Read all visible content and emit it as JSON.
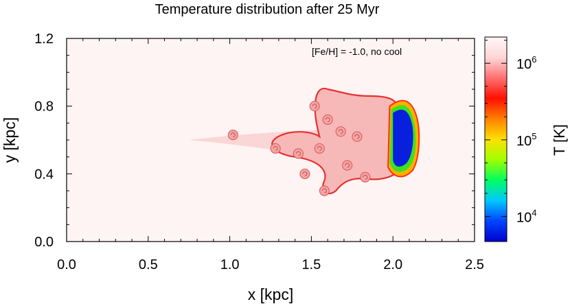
{
  "chart_data": {
    "type": "heatmap",
    "title": "Temperature distribution after 25 Myr",
    "annotation": "[Fe/H] = -1.0, no cool",
    "xlabel": "x [kpc]",
    "ylabel": "y [kpc]",
    "xlim": [
      0.0,
      2.5
    ],
    "ylim": [
      0.0,
      1.2
    ],
    "xticks": [
      0.0,
      0.5,
      1.0,
      1.5,
      2.0,
      2.5
    ],
    "xtick_labels": [
      "0.0",
      "0.5",
      "1.0",
      "1.5",
      "2.0",
      "2.5"
    ],
    "yticks": [
      0.0,
      0.4,
      0.8,
      1.2
    ],
    "ytick_labels": [
      "0.0",
      "0.4",
      "0.8",
      "1.2"
    ],
    "grid": false,
    "colorbar": {
      "label": "T [K]",
      "scale": "log",
      "range": [
        4700,
        2200000
      ],
      "ticks": [
        {
          "value": 10000,
          "base": "10",
          "exp": "4"
        },
        {
          "value": 100000,
          "base": "10",
          "exp": "5"
        },
        {
          "value": 1000000,
          "base": "10",
          "exp": "6"
        }
      ],
      "colors": [
        "#0000cc",
        "#0044ff",
        "#00c8ff",
        "#00ff60",
        "#a0ff00",
        "#ffe000",
        "#ff8000",
        "#ff1000",
        "#ff7070",
        "#ffd6d6",
        "#fff7f7"
      ]
    },
    "field": {
      "background_T": 1000000,
      "background_color": "#fff4f4",
      "jet": {
        "x_range": [
          0.75,
          1.55
        ],
        "y_center": 0.6,
        "color": "#fbd6d6"
      },
      "hot_cocoon": {
        "x_range": [
          1.5,
          2.0
        ],
        "y_range": [
          0.28,
          0.93
        ],
        "color": "#f7b8b8"
      },
      "cold_cloud": {
        "x_range": [
          2.0,
          2.12
        ],
        "y_range": [
          0.4,
          0.82
        ],
        "T": 5000,
        "color": "#0820dd"
      },
      "vortices": [
        {
          "x": 1.02,
          "y": 0.63
        },
        {
          "x": 1.28,
          "y": 0.55
        },
        {
          "x": 1.42,
          "y": 0.52
        },
        {
          "x": 1.55,
          "y": 0.55
        },
        {
          "x": 1.52,
          "y": 0.8
        },
        {
          "x": 1.6,
          "y": 0.72
        },
        {
          "x": 1.58,
          "y": 0.3
        },
        {
          "x": 1.68,
          "y": 0.65
        },
        {
          "x": 1.78,
          "y": 0.62
        },
        {
          "x": 1.72,
          "y": 0.45
        },
        {
          "x": 1.83,
          "y": 0.38
        },
        {
          "x": 1.46,
          "y": 0.4
        }
      ]
    }
  }
}
